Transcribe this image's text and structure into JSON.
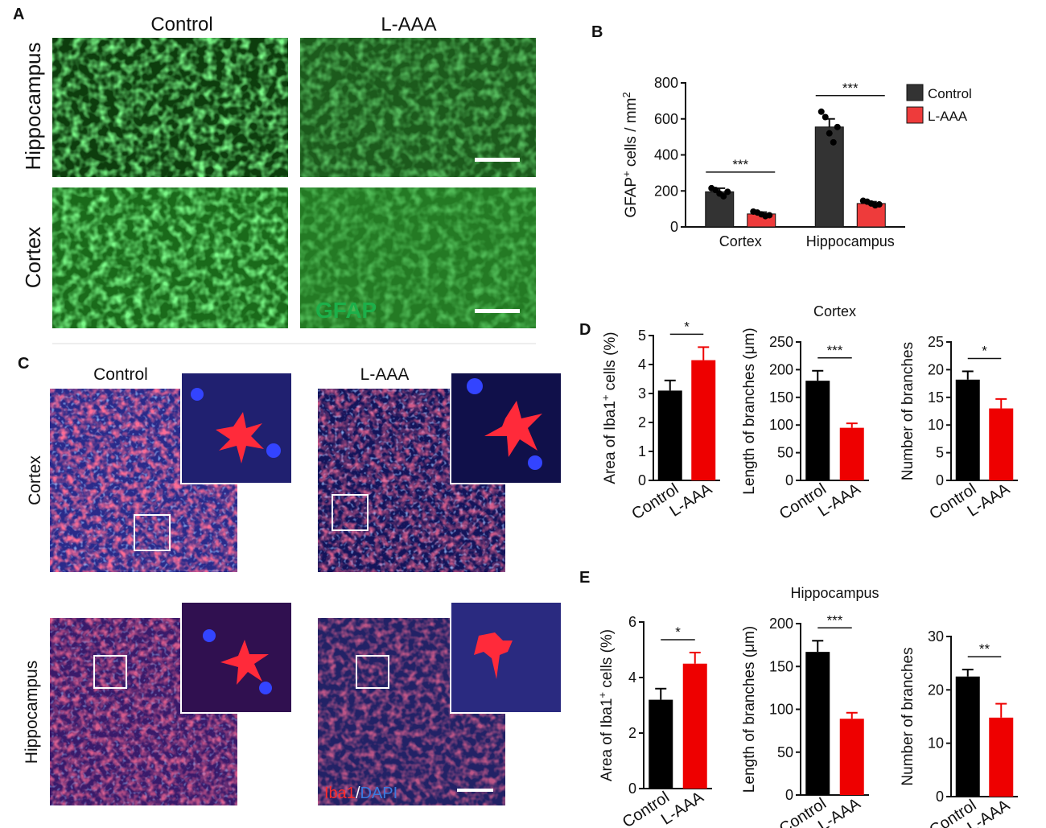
{
  "figure": {
    "panel_labels": [
      "A",
      "B",
      "C",
      "D",
      "E"
    ],
    "a": {
      "columns": [
        "Control",
        "L-AAA"
      ],
      "rows": [
        "Hippocampus",
        "Cortex"
      ],
      "stain": "GFAP"
    },
    "c": {
      "columns": [
        "Control",
        "L-AAA"
      ],
      "rows": [
        "Cortex",
        "Hippocampus"
      ],
      "stain": [
        "Iba1",
        "/",
        "DAPI"
      ]
    }
  },
  "chart_data": [
    {
      "type": "bar",
      "ylabel": [
        "GFAP",
        "+",
        " cells / mm",
        "2"
      ],
      "categories": [
        "Cortex",
        "Hippocampus"
      ],
      "series": [
        {
          "name": "Control",
          "color": "#333333",
          "values": [
            195,
            555
          ],
          "errors": [
            20,
            45
          ],
          "points": [
            [
              215,
              205,
              185,
              170,
              195
            ],
            [
              640,
              610,
              520,
              470,
              555
            ]
          ]
        },
        {
          "name": "L-AAA",
          "color": "#ee3b3b",
          "values": [
            72,
            130
          ],
          "errors": [
            10,
            10
          ],
          "points": [
            [
              85,
              80,
              70,
              60,
              65
            ],
            [
              145,
              140,
              130,
              120,
              125
            ]
          ]
        }
      ],
      "significance": [
        "***",
        "***"
      ],
      "ylim": [
        0,
        800
      ],
      "yticks": [
        0,
        200,
        400,
        600,
        800
      ]
    },
    {
      "type": "bar",
      "ylabel": [
        "Area of Iba1",
        "+",
        " cells (%)"
      ],
      "categories": [
        "Control",
        "L-AAA"
      ],
      "colors": [
        "#000000",
        "#ee0000"
      ],
      "values": [
        3.1,
        4.15
      ],
      "errors": [
        0.35,
        0.45
      ],
      "significance": "*",
      "ylim": [
        0,
        5
      ],
      "yticks": [
        0,
        1,
        2,
        3,
        4,
        5
      ]
    },
    {
      "type": "bar",
      "title": "Cortex",
      "ylabel": "Length of branches (μm)",
      "categories": [
        "Control",
        "L-AAA"
      ],
      "colors": [
        "#000000",
        "#ee0000"
      ],
      "values": [
        180,
        95
      ],
      "errors": [
        18,
        8
      ],
      "significance": "***",
      "ylim": [
        0,
        250
      ],
      "yticks": [
        0,
        50,
        100,
        150,
        200,
        250
      ]
    },
    {
      "type": "bar",
      "ylabel": "Number of branches",
      "categories": [
        "Control",
        "L-AAA"
      ],
      "colors": [
        "#000000",
        "#ee0000"
      ],
      "values": [
        18.2,
        13
      ],
      "errors": [
        1.5,
        1.7
      ],
      "significance": "*",
      "ylim": [
        0,
        25
      ],
      "yticks": [
        0,
        5,
        10,
        15,
        20,
        25
      ]
    },
    {
      "type": "bar",
      "ylabel": [
        "Area of Iba1",
        "+",
        " cells (%)"
      ],
      "categories": [
        "Control",
        "L-AAA"
      ],
      "colors": [
        "#000000",
        "#ee0000"
      ],
      "values": [
        3.2,
        4.5
      ],
      "errors": [
        0.4,
        0.4
      ],
      "significance": "*",
      "ylim": [
        0,
        6
      ],
      "yticks": [
        0,
        2,
        4,
        6
      ]
    },
    {
      "type": "bar",
      "title": "Hippocampus",
      "ylabel": "Length of branches (μm)",
      "categories": [
        "Control",
        "L-AAA"
      ],
      "colors": [
        "#000000",
        "#ee0000"
      ],
      "values": [
        167,
        89
      ],
      "errors": [
        13,
        7
      ],
      "significance": "***",
      "ylim": [
        0,
        200
      ],
      "yticks": [
        0,
        50,
        100,
        150,
        200
      ]
    },
    {
      "type": "bar",
      "ylabel": "Number of branches",
      "categories": [
        "Control",
        "L-AAA"
      ],
      "colors": [
        "#000000",
        "#ee0000"
      ],
      "values": [
        22.5,
        14.8
      ],
      "errors": [
        1.3,
        2.6
      ],
      "significance": "**",
      "ylim": [
        0,
        30
      ],
      "yticks": [
        0,
        10,
        20,
        30
      ]
    }
  ]
}
